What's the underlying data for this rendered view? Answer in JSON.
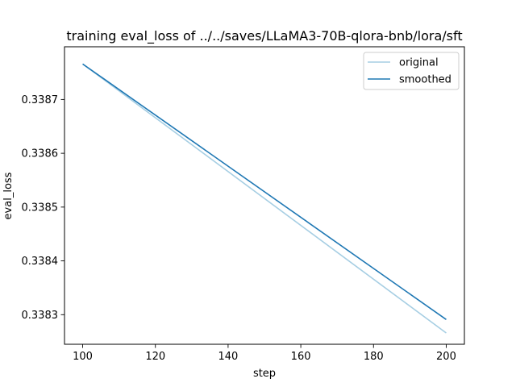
{
  "chart_data": {
    "type": "line",
    "title": "training eval_loss of ../../saves/LLaMA3-70B-qlora-bnb/lora/sft",
    "xlabel": "step",
    "ylabel": "eval_loss",
    "xlim": [
      95,
      205
    ],
    "ylim": [
      0.338245,
      0.338798
    ],
    "xticks": [
      100,
      120,
      140,
      160,
      180,
      200
    ],
    "yticks": [
      0.3383,
      0.3384,
      0.3385,
      0.3386,
      0.3387
    ],
    "ytick_labels": [
      "0.3383",
      "0.3384",
      "0.3385",
      "0.3386",
      "0.3387"
    ],
    "grid": false,
    "legend_position": "upper right",
    "series": [
      {
        "name": "original",
        "color": "#a6cee3",
        "x": [
          100,
          200
        ],
        "y": [
          0.338766,
          0.338266
        ]
      },
      {
        "name": "smoothed",
        "color": "#1f78b4",
        "x": [
          100,
          200
        ],
        "y": [
          0.338766,
          0.338291
        ]
      }
    ]
  }
}
